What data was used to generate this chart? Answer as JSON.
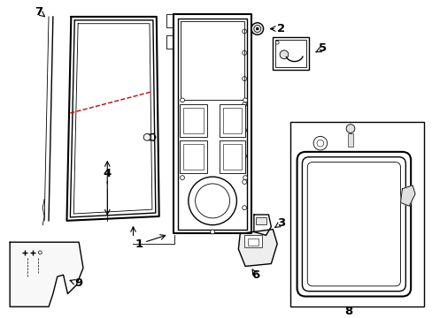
{
  "background_color": "#ffffff",
  "line_color": "#000000",
  "red_dash_color": "#cc0000",
  "figsize": [
    4.89,
    3.6
  ],
  "dpi": 100
}
